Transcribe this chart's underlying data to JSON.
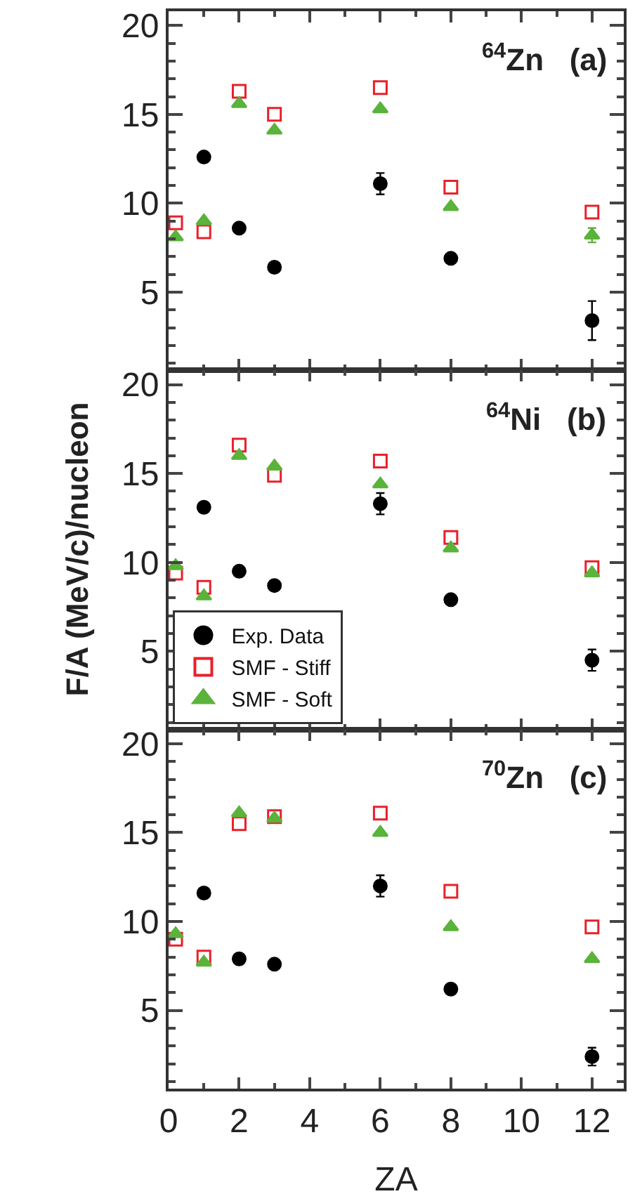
{
  "chart_data": [
    {
      "type": "scatter",
      "x": [
        0.2,
        1,
        2,
        3,
        6,
        8,
        12
      ],
      "xlim": [
        0,
        12.9
      ],
      "xticks": [
        0,
        2,
        4,
        6,
        8,
        10,
        12
      ],
      "ylim": [
        0.6,
        20.8
      ],
      "yticks": [
        5,
        10,
        15,
        20
      ],
      "tick_labels": "y",
      "legend": false,
      "annotations": [
        "$^{64}$Zn   (a)"
      ],
      "series": [
        {
          "color": "#000000",
          "marker": "circle",
          "values": [
            null,
            12.6,
            8.6,
            6.4,
            11.1,
            6.9,
            3.4
          ],
          "errors": [
            null,
            null,
            null,
            null,
            0.6,
            null,
            1.1
          ]
        },
        {
          "color": "#e8202a",
          "marker": "square-open",
          "values": [
            8.9,
            8.4,
            16.3,
            15.0,
            16.5,
            10.9,
            9.5
          ]
        },
        {
          "color": "#5ab33a",
          "marker": "triangle",
          "values": [
            8.1,
            9.0,
            15.6,
            14.1,
            15.3,
            9.8,
            8.2
          ],
          "errors": [
            null,
            null,
            null,
            null,
            null,
            null,
            0.4
          ]
        }
      ]
    },
    {
      "type": "scatter",
      "x": [
        0.2,
        1,
        2,
        3,
        6,
        8,
        12
      ],
      "xlim": [
        0,
        12.9
      ],
      "xticks": [
        0,
        2,
        4,
        6,
        8,
        10,
        12
      ],
      "ylim": [
        0.6,
        20.8
      ],
      "yticks": [
        5,
        10,
        15,
        20
      ],
      "tick_labels": "y",
      "legend": "bottom left",
      "ylabel": "F/A (MeV/c)/nucleon",
      "annotations": [
        "$^{64}$Ni   (b)"
      ],
      "series": [
        {
          "name": "Exp. Data",
          "color": "#000000",
          "marker": "circle",
          "values": [
            null,
            13.1,
            9.5,
            8.7,
            13.3,
            7.9,
            4.5
          ],
          "errors": [
            null,
            null,
            null,
            null,
            0.6,
            null,
            0.6
          ]
        },
        {
          "name": "SMF - Stiff",
          "color": "#e8202a",
          "marker": "square-open",
          "values": [
            9.4,
            8.6,
            16.6,
            14.9,
            15.7,
            11.4,
            9.7
          ]
        },
        {
          "name": "SMF - Soft",
          "color": "#5ab33a",
          "marker": "triangle",
          "values": [
            9.8,
            8.1,
            16.0,
            15.4,
            14.4,
            10.8,
            9.4
          ]
        }
      ]
    },
    {
      "type": "scatter",
      "x": [
        0.2,
        1,
        2,
        3,
        6,
        8,
        12
      ],
      "xlim": [
        0,
        12.9
      ],
      "xticks": [
        0,
        2,
        4,
        6,
        8,
        10,
        12
      ],
      "ylim": [
        0.6,
        20.8
      ],
      "yticks": [
        5,
        10,
        15,
        20
      ],
      "legend": false,
      "xlabel": "ZA",
      "annotations": [
        "$^{70}$Zn   (c)"
      ],
      "series": [
        {
          "color": "#000000",
          "marker": "circle",
          "values": [
            null,
            11.6,
            7.9,
            7.6,
            12.0,
            6.2,
            2.4
          ],
          "errors": [
            null,
            null,
            null,
            null,
            0.6,
            null,
            0.5
          ]
        },
        {
          "color": "#e8202a",
          "marker": "square-open",
          "values": [
            9.0,
            8.0,
            15.5,
            15.9,
            16.1,
            11.7,
            9.7
          ]
        },
        {
          "color": "#5ab33a",
          "marker": "triangle",
          "values": [
            9.3,
            7.7,
            16.1,
            15.8,
            15.0,
            9.7,
            7.9
          ]
        }
      ]
    }
  ]
}
